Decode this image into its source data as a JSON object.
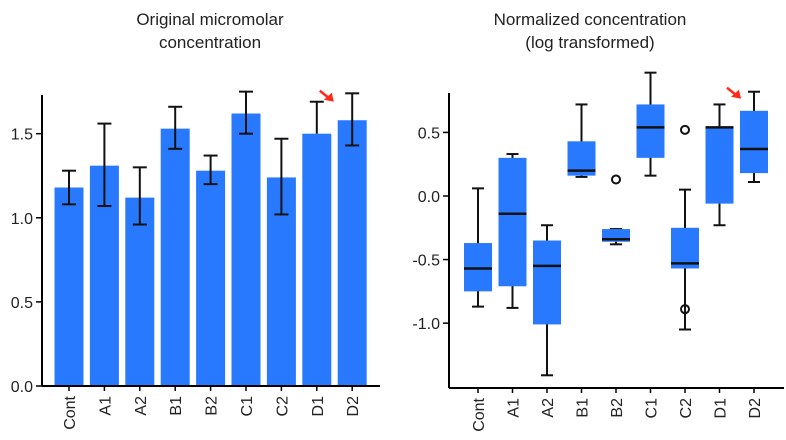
{
  "chart_data": [
    {
      "type": "bar",
      "title": [
        "Original micromolar",
        "concentration"
      ],
      "xlabel": "",
      "ylabel": "",
      "ylim": [
        0,
        1.73
      ],
      "yticks": [
        0.0,
        0.5,
        1.0,
        1.5
      ],
      "ytick_labels": [
        "0.0",
        "0.5",
        "1.0",
        "1.5"
      ],
      "categories": [
        "Cont",
        "A1",
        "A2",
        "B1",
        "B2",
        "C1",
        "C2",
        "D1",
        "D2"
      ],
      "values": [
        1.18,
        1.31,
        1.12,
        1.53,
        1.28,
        1.62,
        1.24,
        1.5,
        1.58
      ],
      "error_low": [
        1.08,
        1.07,
        0.96,
        1.41,
        1.2,
        1.5,
        1.02,
        1.5,
        1.43
      ],
      "error_high": [
        1.28,
        1.56,
        1.3,
        1.66,
        1.37,
        1.75,
        1.47,
        1.69,
        1.74
      ],
      "bar_color": "#2979ff",
      "highlight_arrow_at": "D1",
      "arrow_color": "#ff2a1a"
    },
    {
      "type": "box",
      "title": [
        "Normalized concentration",
        "(log transformed)"
      ],
      "xlabel": "",
      "ylabel": "",
      "ylim": [
        -1.51,
        0.81
      ],
      "yticks": [
        -1.0,
        -0.5,
        0.0,
        0.5
      ],
      "ytick_labels": [
        "-1.0",
        "-0.5",
        "0.0",
        "0.5"
      ],
      "categories": [
        "Cont",
        "A1",
        "A2",
        "B1",
        "B2",
        "C1",
        "C2",
        "D1",
        "D2"
      ],
      "whisker_low": [
        -0.87,
        -0.88,
        -1.41,
        0.15,
        -0.38,
        0.16,
        -1.05,
        -0.23,
        0.11
      ],
      "q1": [
        -0.75,
        -0.71,
        -1.01,
        0.16,
        -0.36,
        0.3,
        -0.57,
        -0.06,
        0.18
      ],
      "median": [
        -0.57,
        -0.14,
        -0.55,
        0.2,
        -0.34,
        0.54,
        -0.53,
        0.54,
        0.37
      ],
      "q3": [
        -0.37,
        0.3,
        -0.35,
        0.43,
        -0.26,
        0.72,
        -0.25,
        0.54,
        0.67
      ],
      "whisker_high": [
        0.06,
        0.33,
        -0.23,
        0.72,
        -0.26,
        0.97,
        0.05,
        0.72,
        0.82
      ],
      "outliers": [
        [],
        [],
        [],
        [],
        [
          0.13
        ],
        [],
        [
          0.52,
          -0.89
        ],
        [],
        []
      ],
      "box_color": "#2979ff",
      "highlight_arrow_at": "D2",
      "arrow_color": "#ff2a1a"
    }
  ]
}
